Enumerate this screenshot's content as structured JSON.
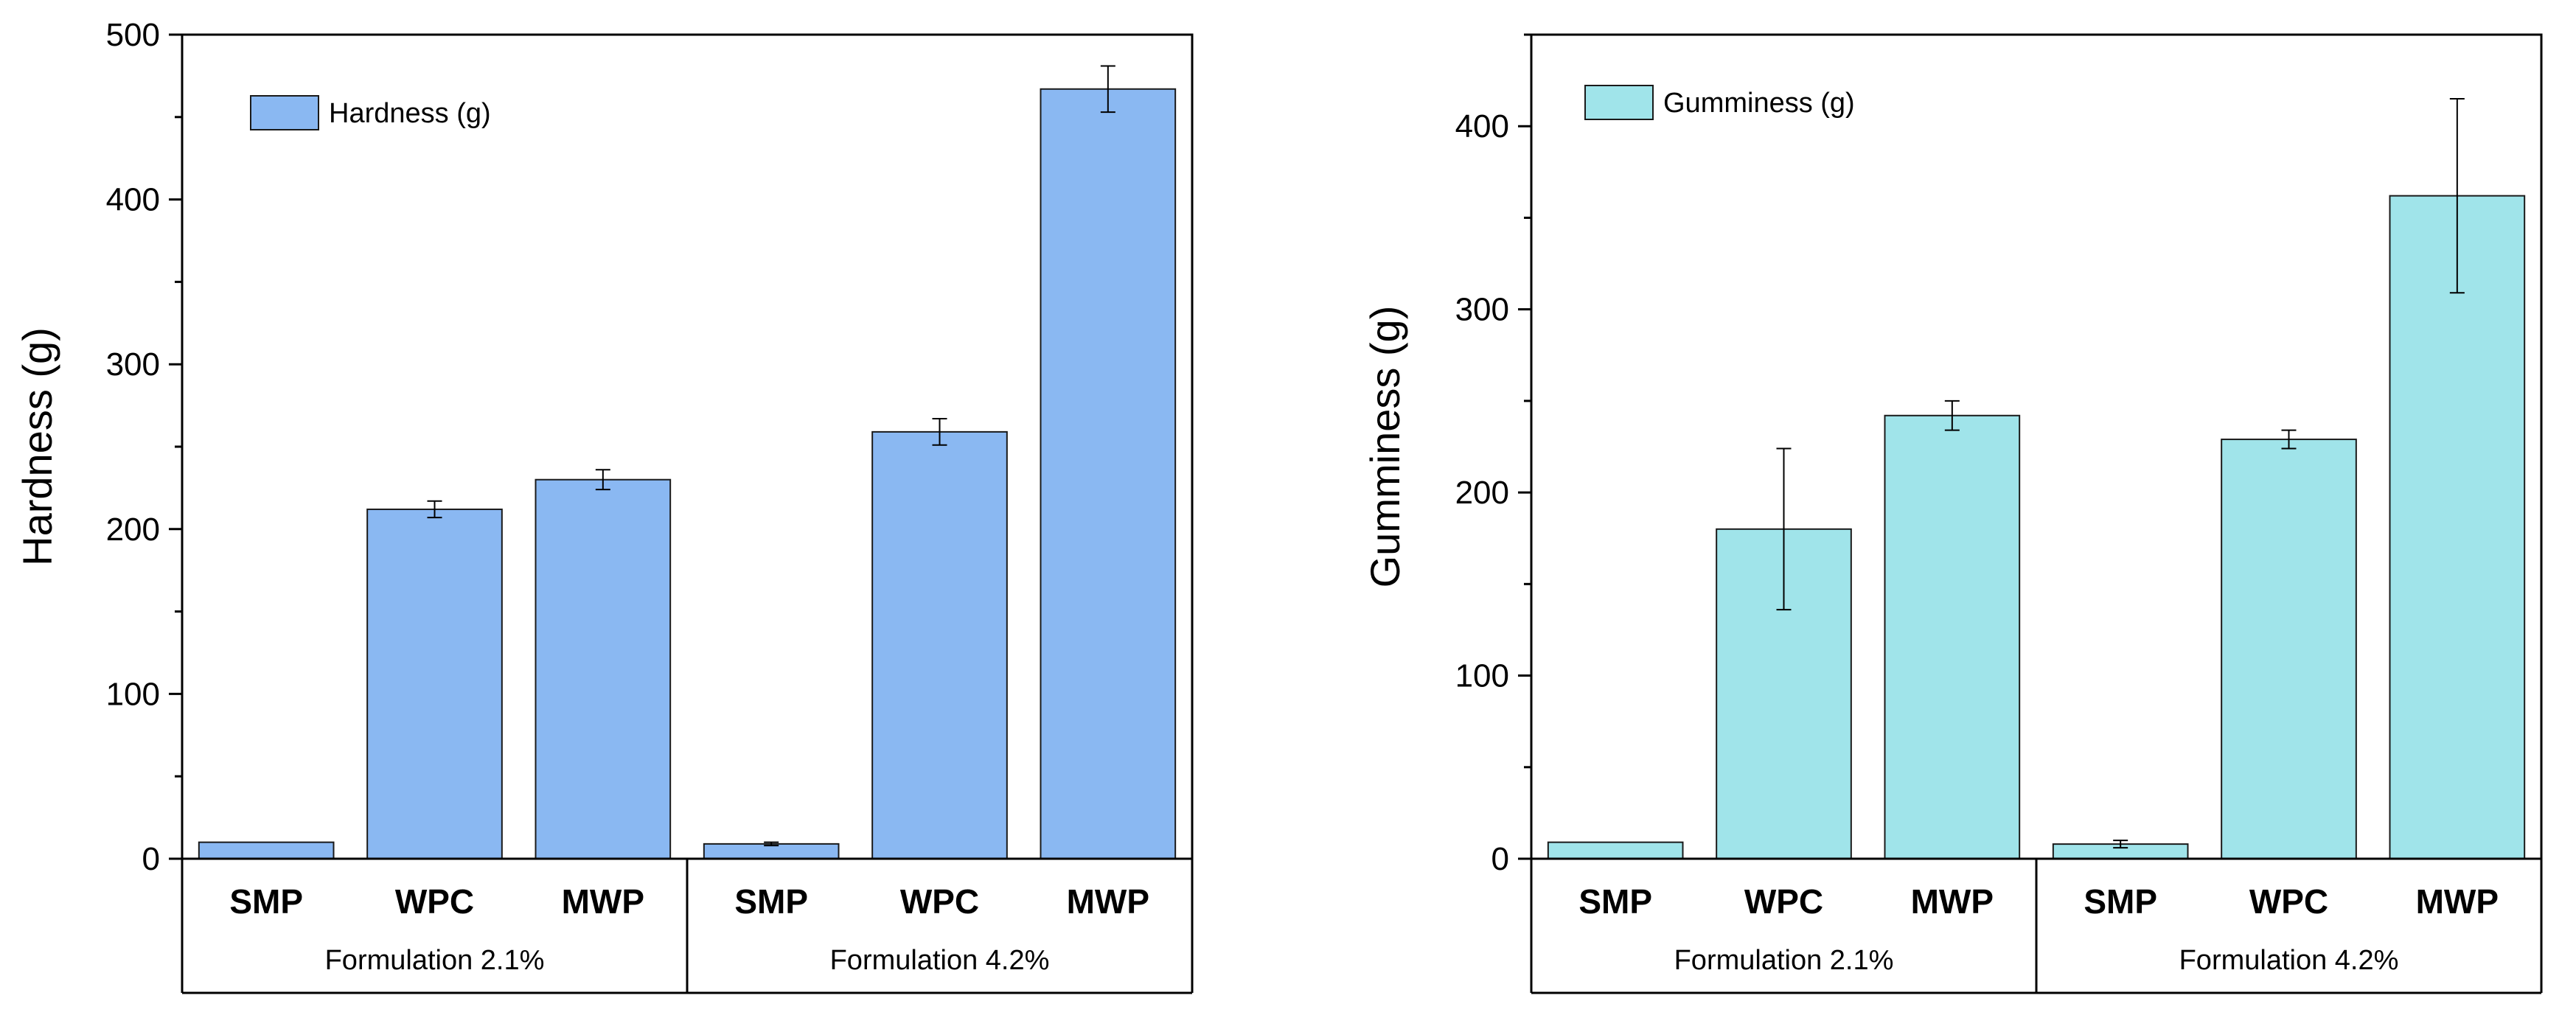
{
  "chart_data": [
    {
      "type": "bar",
      "ylabel": "Hardness (g)",
      "ylim": [
        0,
        500
      ],
      "yticks": [
        "0",
        "100",
        "200",
        "300",
        "400",
        "500"
      ],
      "legend": {
        "label": "Hardness (g)",
        "position": "top-left"
      },
      "categories": [
        "SMP",
        "WPC",
        "MWP",
        "SMP",
        "WPC",
        "MWP"
      ],
      "groups": [
        {
          "label": "Formulation 2.1%",
          "count": 3
        },
        {
          "label": "Formulation 4.2%",
          "count": 3
        }
      ],
      "values": [
        10,
        212,
        230,
        9,
        259,
        467
      ],
      "errors": [
        0,
        5,
        6,
        1,
        8,
        14
      ],
      "color": "#8ab8f2"
    },
    {
      "type": "bar",
      "ylabel": "Gumminess (g)",
      "ylim": [
        0,
        450
      ],
      "yticks": [
        "0",
        "100",
        "200",
        "300",
        "400"
      ],
      "legend": {
        "label": "Gumminess (g)",
        "position": "top-left"
      },
      "categories": [
        "SMP",
        "WPC",
        "MWP",
        "SMP",
        "WPC",
        "MWP"
      ],
      "groups": [
        {
          "label": "Formulation 2.1%",
          "count": 3
        },
        {
          "label": "Formulation 4.2%",
          "count": 3
        }
      ],
      "values": [
        9,
        180,
        242,
        8,
        229,
        362
      ],
      "errors": [
        0,
        44,
        8,
        2,
        5,
        53
      ],
      "color": "#a0e4ea"
    }
  ]
}
